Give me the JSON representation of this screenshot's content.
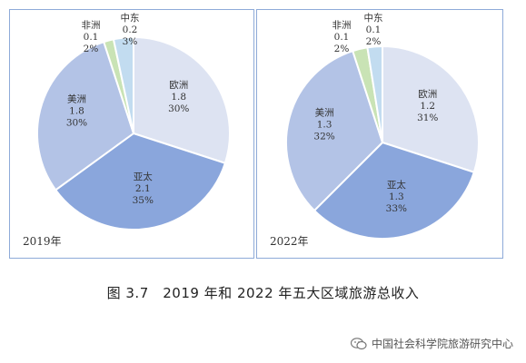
{
  "chart_data": [
    {
      "type": "pie",
      "year_label": "2019年",
      "slices": [
        {
          "name": "欧洲",
          "value": "1.8",
          "pct": 30,
          "label": [
            "欧洲",
            "1.8",
            "30%"
          ],
          "color": "#dde3f2"
        },
        {
          "name": "亚太",
          "value": "2.1",
          "pct": 35,
          "label": [
            "亚太",
            "2.1",
            "35%"
          ],
          "color": "#8aa6dc"
        },
        {
          "name": "美洲",
          "value": "1.8",
          "pct": 30,
          "label": [
            "美洲",
            "1.8",
            "30%"
          ],
          "color": "#b3c3e6"
        },
        {
          "name": "非洲",
          "value": "0.1",
          "pct": 2,
          "label": [
            "非洲",
            "0.1",
            "2%"
          ],
          "color": "#c9e3b5"
        },
        {
          "name": "中东",
          "value": "0.2",
          "pct": 3,
          "label": [
            "中东",
            "0.2",
            "3%"
          ],
          "color": "#c2dcf0"
        }
      ]
    },
    {
      "type": "pie",
      "year_label": "2022年",
      "slices": [
        {
          "name": "欧洲",
          "value": "1.2",
          "pct": 31,
          "label": [
            "欧洲",
            "1.2",
            "31%"
          ],
          "color": "#dde3f2"
        },
        {
          "name": "亚太",
          "value": "1.3",
          "pct": 33,
          "label": [
            "亚太",
            "1.3",
            "33%"
          ],
          "color": "#8aa6dc"
        },
        {
          "name": "美洲",
          "value": "1.3",
          "pct": 32,
          "label": [
            "美洲",
            "1.3",
            "32%"
          ],
          "color": "#b3c3e6"
        },
        {
          "name": "非洲",
          "value": "0.1",
          "pct": 2,
          "label": [
            "非洲",
            "0.1",
            "2%"
          ],
          "color": "#c9e3b5"
        },
        {
          "name": "中东",
          "value": "0.1",
          "pct": 2,
          "label": [
            "中东",
            "0.1",
            "2%"
          ],
          "color": "#c2dcf0"
        }
      ]
    }
  ],
  "caption": "图 3.7　2019 年和 2022 年五大区域旅游总收入",
  "watermark": {
    "icon": "wechat-icon",
    "text": "中国社会科学院旅游研究中心"
  }
}
